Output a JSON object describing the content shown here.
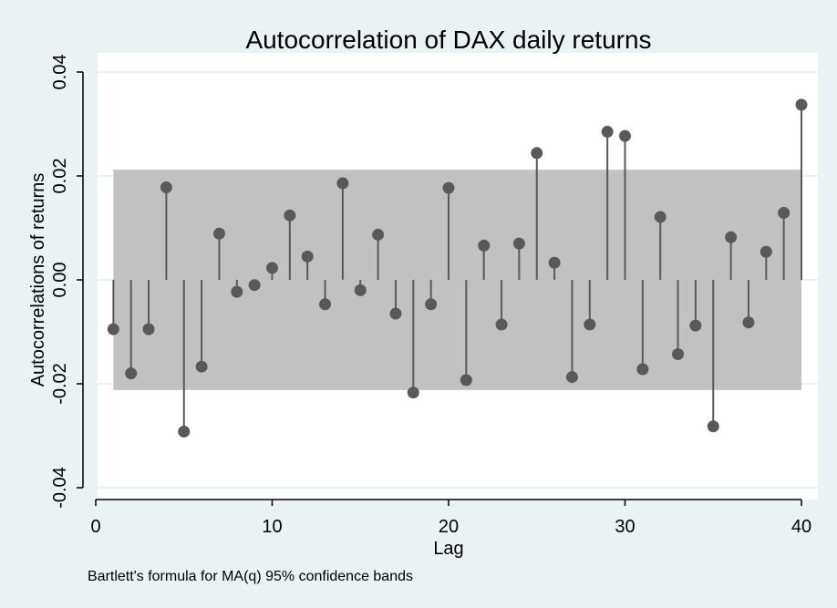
{
  "chart_data": {
    "type": "stem",
    "title": "Autocorrelation of DAX daily returns",
    "xlabel": "Lag",
    "ylabel": "Autocorrelations of returns",
    "note": "Bartlett's formula for MA(q) 95% confidence bands",
    "xlim": [
      0,
      40
    ],
    "ylim": [
      -0.04,
      0.04
    ],
    "x_ticks": [
      0,
      10,
      20,
      30,
      40
    ],
    "x_tick_labels": [
      "0",
      "10",
      "20",
      "30",
      "40"
    ],
    "y_ticks": [
      -0.04,
      -0.02,
      0.0,
      0.02,
      0.04
    ],
    "y_tick_labels": [
      "-0.04",
      "-0.02",
      "0.00",
      "0.02",
      "0.04"
    ],
    "grid": true,
    "lags": [
      1,
      2,
      3,
      4,
      5,
      6,
      7,
      8,
      9,
      10,
      11,
      12,
      13,
      14,
      15,
      16,
      17,
      18,
      19,
      20,
      21,
      22,
      23,
      24,
      25,
      26,
      27,
      28,
      29,
      30,
      31,
      32,
      33,
      34,
      35,
      36,
      37,
      38,
      39,
      40
    ],
    "values": [
      -0.0095,
      -0.018,
      -0.0095,
      0.0178,
      -0.0292,
      -0.0167,
      0.0089,
      -0.0023,
      -0.001,
      0.0023,
      0.0124,
      0.0045,
      -0.0047,
      0.0186,
      -0.002,
      0.0087,
      -0.0065,
      -0.0217,
      -0.0047,
      0.0177,
      -0.0193,
      0.0066,
      -0.0086,
      0.007,
      0.0244,
      0.0033,
      -0.0187,
      -0.0086,
      0.0285,
      0.0277,
      -0.0172,
      0.0121,
      -0.0143,
      -0.0088,
      -0.0282,
      0.0082,
      -0.0082,
      0.0054,
      0.0129,
      0.0337
    ],
    "confidence_band": {
      "lag_start": 1,
      "lag_end": 40,
      "upper": 0.0212,
      "lower": -0.0212
    },
    "colors": {
      "background": "#eaf2f3",
      "plot_area": "#ffffff",
      "band": "#c1c1c1",
      "stem": "#595959",
      "marker": "#595959",
      "grid": "#e6ebed"
    }
  }
}
